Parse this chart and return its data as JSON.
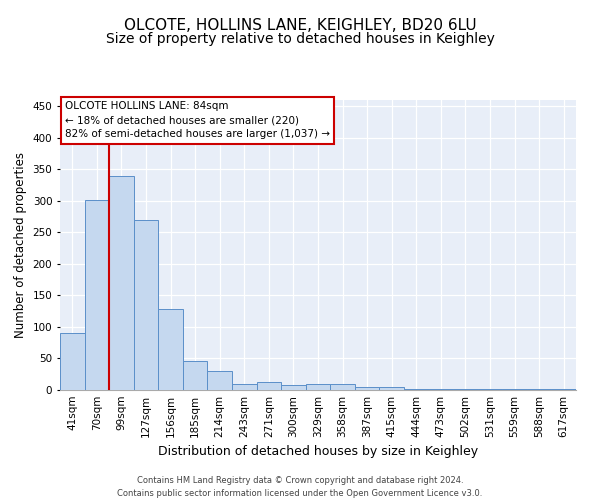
{
  "title": "OLCOTE, HOLLINS LANE, KEIGHLEY, BD20 6LU",
  "subtitle": "Size of property relative to detached houses in Keighley",
  "xlabel": "Distribution of detached houses by size in Keighley",
  "ylabel": "Number of detached properties",
  "categories": [
    "41sqm",
    "70sqm",
    "99sqm",
    "127sqm",
    "156sqm",
    "185sqm",
    "214sqm",
    "243sqm",
    "271sqm",
    "300sqm",
    "329sqm",
    "358sqm",
    "387sqm",
    "415sqm",
    "444sqm",
    "473sqm",
    "502sqm",
    "531sqm",
    "559sqm",
    "588sqm",
    "617sqm"
  ],
  "values": [
    90,
    302,
    340,
    270,
    128,
    46,
    30,
    10,
    12,
    8,
    10,
    10,
    4,
    4,
    2,
    2,
    1,
    2,
    1,
    2,
    2
  ],
  "bar_color": "#c5d8ef",
  "bar_edge_color": "#5b8fc9",
  "vline_x": 1.5,
  "vline_color": "#cc0000",
  "annotation_text": "OLCOTE HOLLINS LANE: 84sqm\n← 18% of detached houses are smaller (220)\n82% of semi-detached houses are larger (1,037) →",
  "annotation_box_facecolor": "#ffffff",
  "annotation_box_edgecolor": "#cc0000",
  "ylim": [
    0,
    460
  ],
  "yticks": [
    0,
    50,
    100,
    150,
    200,
    250,
    300,
    350,
    400,
    450
  ],
  "plot_bg_color": "#e8eef8",
  "footer_text": "Contains HM Land Registry data © Crown copyright and database right 2024.\nContains public sector information licensed under the Open Government Licence v3.0.",
  "title_fontsize": 11,
  "subtitle_fontsize": 10,
  "xlabel_fontsize": 9,
  "ylabel_fontsize": 8.5,
  "tick_fontsize": 7.5,
  "annotation_fontsize": 7.5,
  "footer_fontsize": 6
}
